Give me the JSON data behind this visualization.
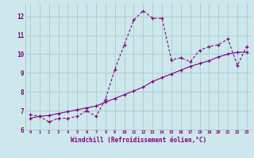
{
  "title": "",
  "xlabel": "Windchill (Refroidissement éolien,°C)",
  "ylabel": "",
  "xlim": [
    -0.5,
    23.5
  ],
  "ylim": [
    6,
    12.7
  ],
  "yticks": [
    6,
    7,
    8,
    9,
    10,
    11,
    12
  ],
  "xticks": [
    0,
    1,
    2,
    3,
    4,
    5,
    6,
    7,
    8,
    9,
    10,
    11,
    12,
    13,
    14,
    15,
    16,
    17,
    18,
    19,
    20,
    21,
    22,
    23
  ],
  "bg_color": "#cde8ec",
  "line_color": "#800080",
  "grid_color": "#b0cdd0",
  "series1_x": [
    0,
    1,
    2,
    3,
    4,
    5,
    6,
    7,
    8,
    9,
    10,
    11,
    12,
    13,
    14,
    15,
    16,
    17,
    18,
    19,
    20,
    21,
    22,
    23
  ],
  "series1_y": [
    6.8,
    6.7,
    6.4,
    6.6,
    6.6,
    6.7,
    7.0,
    6.7,
    7.6,
    9.2,
    10.5,
    11.8,
    12.3,
    11.9,
    11.9,
    9.7,
    9.8,
    9.6,
    10.2,
    10.4,
    10.5,
    10.8,
    9.4,
    10.4
  ],
  "series2_x": [
    0,
    1,
    2,
    3,
    4,
    5,
    6,
    7,
    8,
    9,
    10,
    11,
    12,
    13,
    14,
    15,
    16,
    17,
    18,
    19,
    20,
    21,
    22,
    23
  ],
  "series2_y": [
    6.6,
    6.7,
    6.75,
    6.85,
    6.95,
    7.05,
    7.15,
    7.25,
    7.45,
    7.65,
    7.85,
    8.05,
    8.25,
    8.55,
    8.75,
    8.95,
    9.15,
    9.35,
    9.5,
    9.65,
    9.85,
    10.0,
    10.1,
    10.1
  ]
}
